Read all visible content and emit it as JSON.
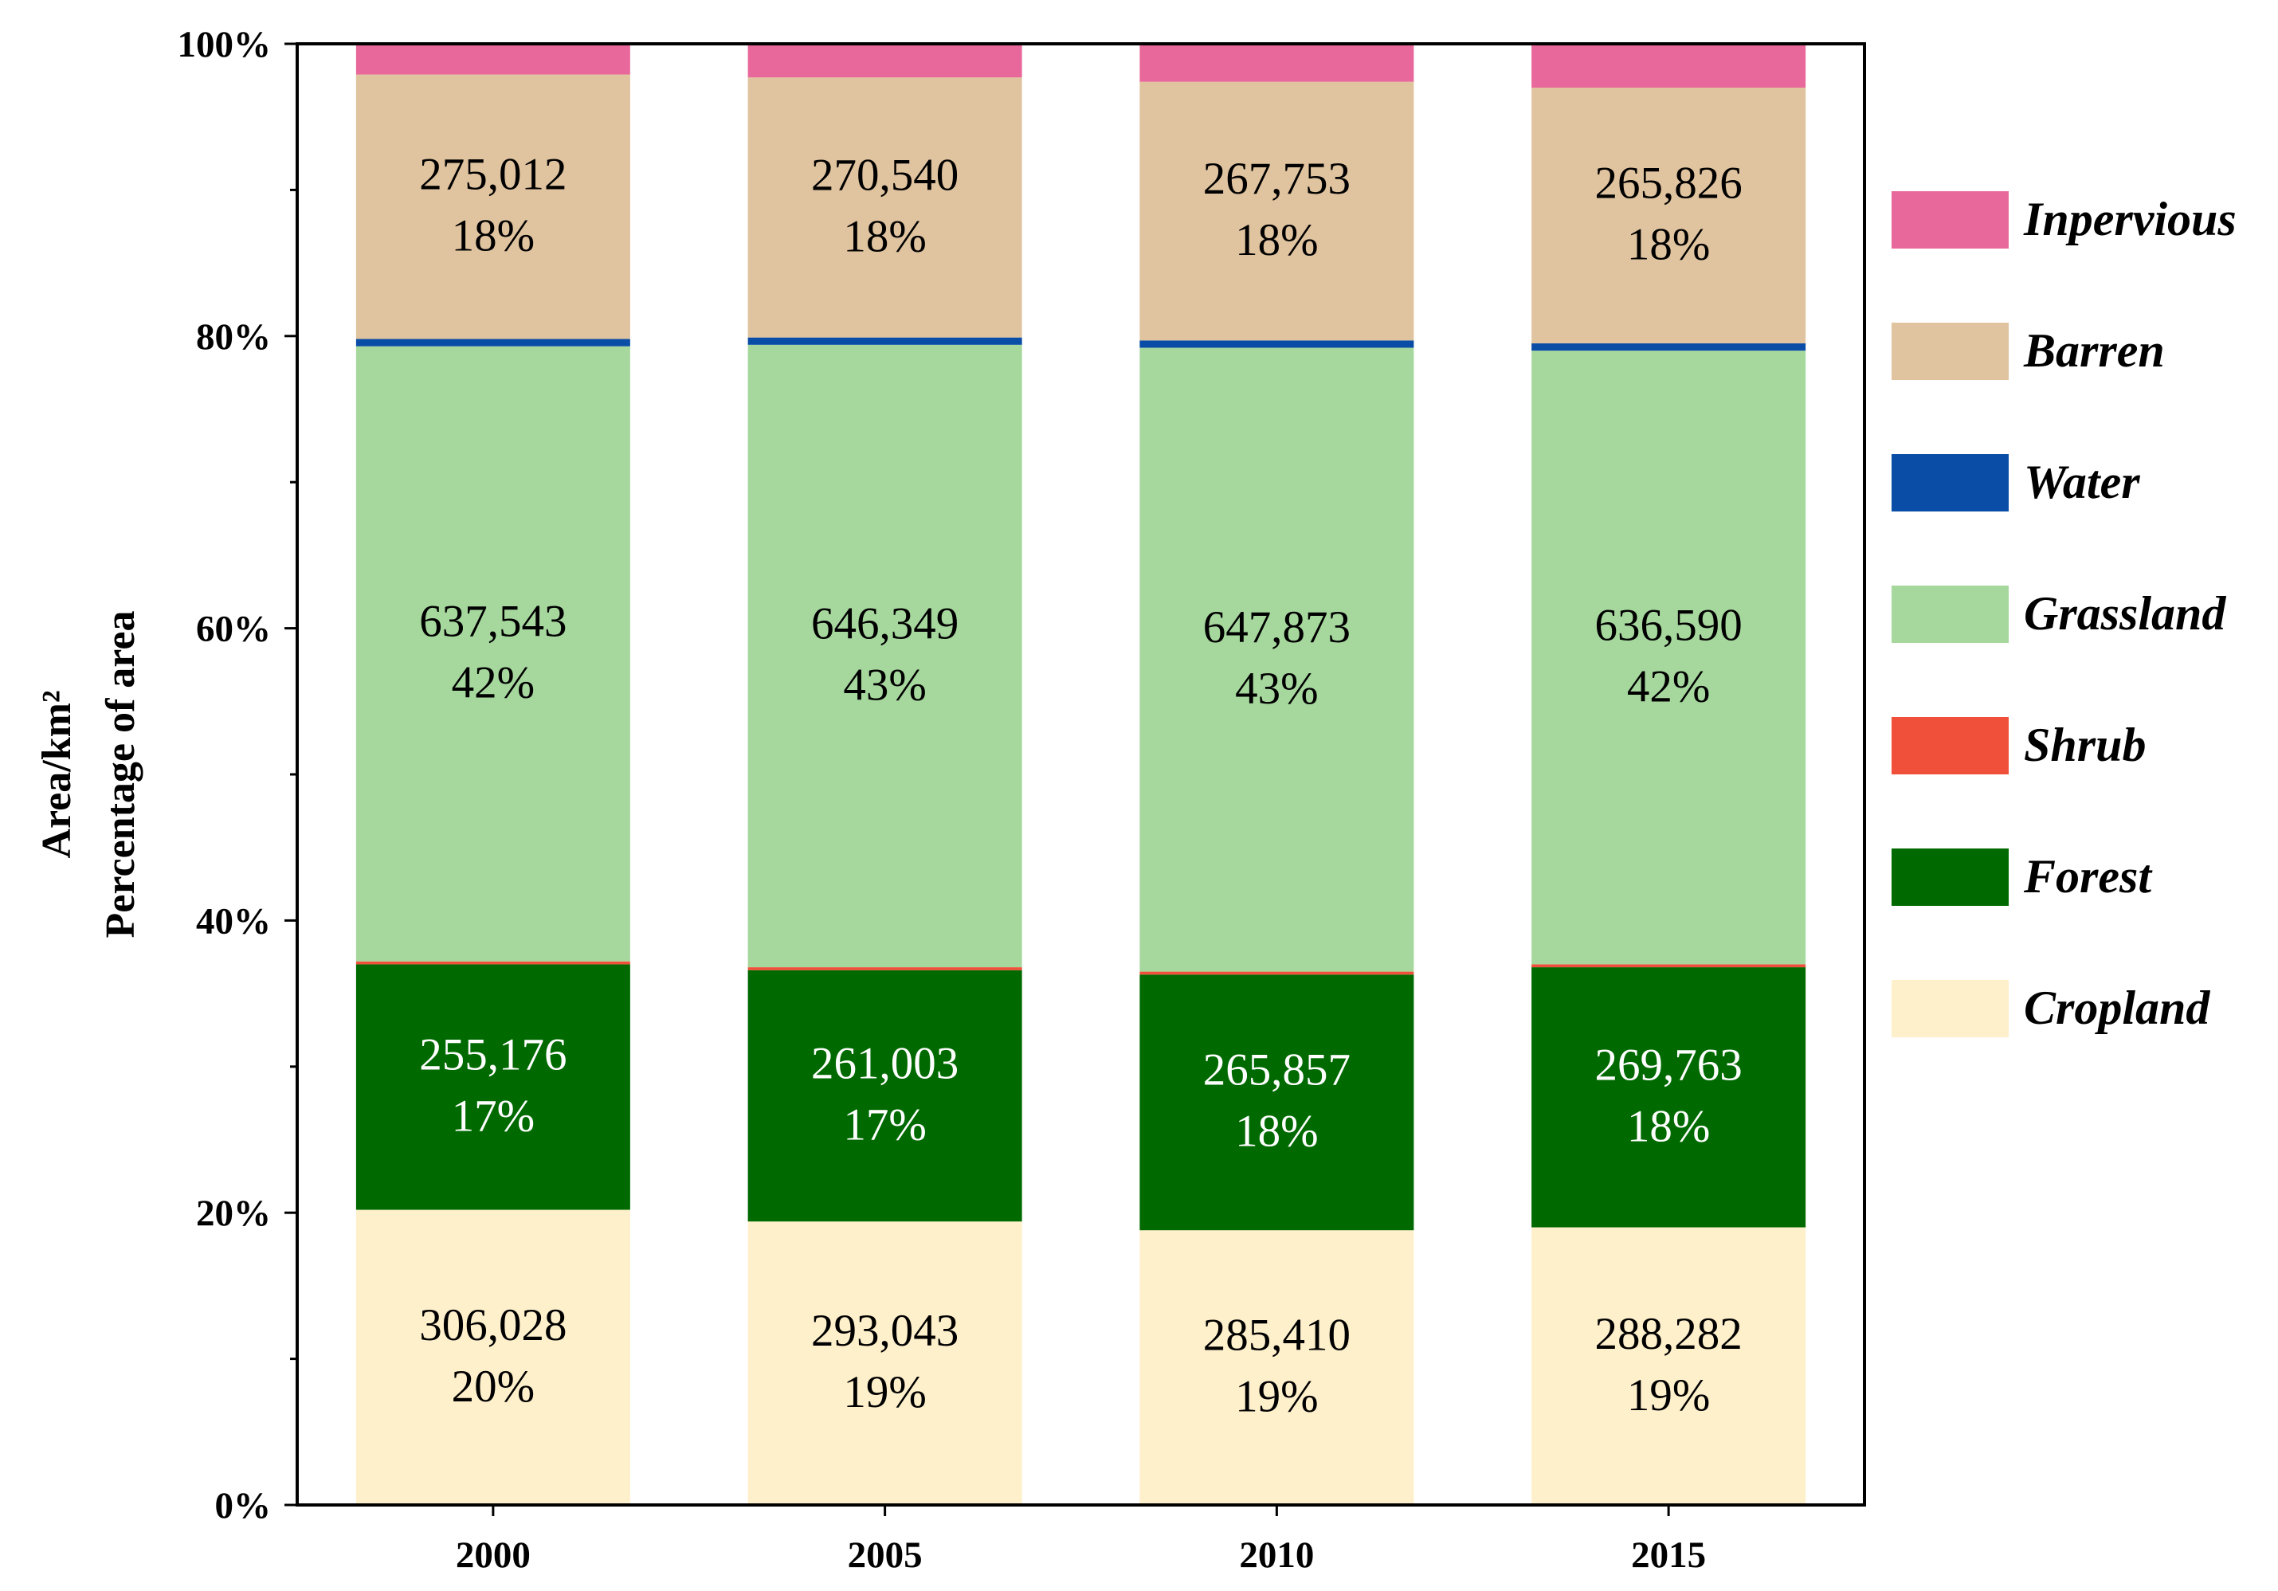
{
  "chart_data": {
    "type": "bar",
    "stacked": true,
    "normalized": true,
    "title": "",
    "xlabel": "",
    "ylabel_lines": [
      "Area/km²",
      "Percentage of area"
    ],
    "ylim": [
      0,
      100
    ],
    "yticks": [
      "0%",
      "20%",
      "40%",
      "60%",
      "80%",
      "100%"
    ],
    "categories": [
      "2000",
      "2005",
      "2010",
      "2015"
    ],
    "legend_position": "right",
    "series": [
      {
        "name": "Cropland",
        "color": "#FFF0CC",
        "label_color": "#000000",
        "values": [
          20.2,
          19.4,
          18.8,
          19.0
        ],
        "areas": [
          "306,028",
          "293,043",
          "285,410",
          "288,282"
        ],
        "percents": [
          "20%",
          "19%",
          "19%",
          "19%"
        ]
      },
      {
        "name": "Forest",
        "color": "#006A00",
        "label_color": "#FFFFFF",
        "values": [
          16.8,
          17.2,
          17.5,
          17.8
        ],
        "areas": [
          "255,176",
          "261,003",
          "265,857",
          "269,763"
        ],
        "percents": [
          "17%",
          "17%",
          "18%",
          "18%"
        ]
      },
      {
        "name": "Shrub",
        "color": "#F0503A",
        "label_color": "#000000",
        "values": [
          0.2,
          0.2,
          0.2,
          0.2
        ],
        "areas": [],
        "percents": []
      },
      {
        "name": "Grassland",
        "color": "#A6D89E",
        "label_color": "#000000",
        "values": [
          42.1,
          42.6,
          42.7,
          42.0
        ],
        "areas": [
          "637,543",
          "646,349",
          "647,873",
          "636,590"
        ],
        "percents": [
          "42%",
          "43%",
          "43%",
          "42%"
        ]
      },
      {
        "name": "Water",
        "color": "#0A4DA6",
        "label_color": "#000000",
        "values": [
          0.5,
          0.5,
          0.5,
          0.5
        ],
        "areas": [],
        "percents": []
      },
      {
        "name": "Barren",
        "color": "#E0C39F",
        "label_color": "#000000",
        "values": [
          18.1,
          17.8,
          17.7,
          17.5
        ],
        "areas": [
          "275,012",
          "270,540",
          "267,753",
          "265,826"
        ],
        "percents": [
          "18%",
          "18%",
          "18%",
          "18%"
        ]
      },
      {
        "name": "Inpervious",
        "color": "#E9689B",
        "label_color": "#000000",
        "values": [
          2.1,
          2.3,
          2.6,
          3.0
        ],
        "areas": [],
        "percents": []
      }
    ],
    "legend_order": [
      "Inpervious",
      "Barren",
      "Water",
      "Grassland",
      "Shrub",
      "Forest",
      "Cropland"
    ]
  }
}
